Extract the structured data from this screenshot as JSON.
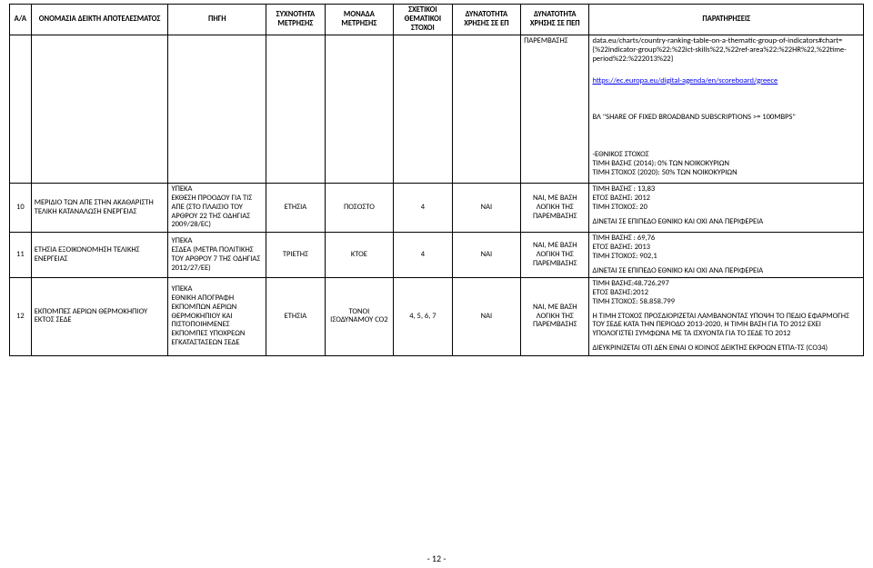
{
  "headers": {
    "aa": "Α/Α",
    "name": "ΟΝΟΜΑΣΙΑ ΔΕΙΚΤΗ ΑΠΟΤΕΛΕΣΜΑΤΟΣ",
    "source": "ΠΗΓΗ",
    "freq": "ΣΥΧΝΟΤΗΤΑ ΜΕΤΡΗΣΗΣ",
    "unit": "ΜΟΝΑΔΑ ΜΕΤΡΗΣΗΣ",
    "relevant": "ΣΧΕΤΙΚΟΙ ΘΕΜΑΤΙΚΟΙ ΣΤΟΧΟΙ",
    "ep": "ΔΥΝΑΤΟΤΗΤΑ ΧΡΗΣΗΣ ΣΕ ΕΠ",
    "pep": "ΔΥΝΑΤΟΤΗΤΑ ΧΡΗΣΗΣ ΣΕ ΠΕΠ",
    "obs": "ΠΑΡΑΤΗΡΗΣΕΙΣ"
  },
  "preRow": {
    "pep": "ΠΑΡΕΜΒΑΣΗΣ",
    "obsNote1": "data.eu/charts/country-ranking-table-on-a-thematic-group-of-indicators#chart={%22indicator-group%22:%22ict-skills%22,%22ref-area%22:%22HR%22,%22time-period%22:%222013%22}",
    "obsLink": "https://ec.europa.eu/digital-agenda/en/scoreboard/greece",
    "obsBL": "ΒΛ \"SHARE OF FIXED BROADBAND SUBSCRIPTIONS >= 100MBPS\""
  },
  "ethnikos": {
    "l1": "-ΕΘΝΙΚΟΣ ΣΤΟΧΟΣ",
    "l2": "ΤΙΜΗ ΒΑΣΗΣ (2014): 0% ΤΩΝ ΝΟΙΚΟΚΥΡΙΩΝ",
    "l3": "ΤΙΜΗ ΣΤΟΧΟΣ (2020): 50% ΤΩΝ ΝΟΙΚΟΚΥΡΙΩΝ"
  },
  "rows": [
    {
      "aa": "10",
      "name": "ΜΕΡΙΔΙΟ ΤΩΝ ΑΠΕ ΣΤΗΝ ΑΚΑΘΑΡΙΣΤΗ ΤΕΛΙΚΗ ΚΑΤΑΝΑΛΩΣΗ ΕΝΕΡΓΕΙΑΣ",
      "source": "ΥΠΕΚΑ\nΈΚΘΕΣΗ ΠΡΟΟΔΟΥ ΓΙΑ ΤΙΣ ΑΠΕ (ΣΤΟ ΠΛΑΙΣΙΟ ΤΟΥ ΑΡΘΡΟΥ 22 ΤΗΣ ΟΔΗΓΙΑΣ 2009/28/EC)",
      "freq": "ΕΤΗΣΙΑ",
      "unit": "ΠΟΣΟΣΤΟ",
      "relevant": "4",
      "ep": "ΝΑΙ",
      "pep": "ΝΑΙ, ΜΕ ΒΑΣΗ ΛΟΓΙΚΗ ΤΗΣ ΠΑΡΕΜΒΑΣΗΣ",
      "obs": "ΤΙΜΗ ΒΑΣΗΣ : 13,83\nΕΤΟΣ ΒΑΣΗΣ: 2012\nΤΙΜΗ ΣΤΟΧΟΣ: 20\n\nΔΙΝΕΤΑΙ ΣΕ ΕΠΙΠΕΔΟ ΕΘΝΙΚΟ ΚΑΙ ΟΧΙ ΑΝΑ ΠΕΡΙΦΕΡΕΙΑ"
    },
    {
      "aa": "11",
      "name": "ΕΤΗΣΙΑ ΕΞΟΙΚΟΝΟΜΗΣΗ ΤΕΛΙΚΗΣ ΕΝΕΡΓΕΙΑΣ",
      "source": "ΥΠΕΚΑ\nΕΣΔΕΑ (ΜΕΤΡΑ ΠΟΛΙΤΙΚΗΣ ΤΟΥ ΑΡΘΡΟΥ 7 ΤΗΣ ΟΔΗΓΙΑΣ 2012/27/EE)",
      "freq": "ΤΡΙΕΤΗΣ",
      "unit": "ΚΤΟΕ",
      "relevant": "4",
      "ep": "ΝΑΙ",
      "pep": "ΝΑΙ, ΜΕ ΒΑΣΗ ΛΟΓΙΚΗ ΤΗΣ ΠΑΡΕΜΒΑΣΗΣ",
      "obs": "ΤΙΜΗ ΒΑΣΗΣ : 69,76\nΕΤΟΣ ΒΑΣΗΣ: 2013\nΤΙΜΗ ΣΤΟΧΟΣ: 902,1\n\nΔΙΝΕΤΑΙ ΣΕ ΕΠΙΠΕΔΟ ΕΘΝΙΚΟ ΚΑΙ ΟΧΙ ΑΝΑ ΠΕΡΙΦΕΡΕΙΑ"
    },
    {
      "aa": "12",
      "name": "ΕΚΠΟΜΠΕΣ ΑΕΡΙΩΝ ΘΕΡΜΟΚΗΠΙΟΥ ΕΚΤΟΣ ΣΕΔΕ",
      "source": "ΥΠΕΚΑ\nΕΘΝΙΚΗ ΑΠΟΓΡΑΦΗ ΕΚΠΟΜΠΩΝ ΑΕΡΙΩΝ ΘΕΡΜΟΚΗΠΙΟΥ ΚΑΙ ΠΙΣΤΟΠΟΙΗΜΕΝΕΣ ΕΚΠΟΜΠΕΣ ΥΠΟΧΡΕΩΝ ΕΓΚΑΤΑΣΤΑΣΕΩΝ ΣΕΔΕ",
      "freq": "ΕΤΗΣΙΑ",
      "unit": "ΤΟΝΟΙ ΙΣΟΔΥΝΑΜΟΥ CO2",
      "relevant": "4, 5, 6, 7",
      "ep": "ΝΑΙ",
      "pep": "ΝΑΙ, ΜΕ ΒΑΣΗ ΛΟΓΙΚΗ ΤΗΣ ΠΑΡΕΜΒΑΣΗΣ",
      "obs": "ΤΙΜΗ ΒΑΣΗΣ:48.726.297\nΕΤΟΣ ΒΑΣΗΣ:2012\nΤΙΜΗ ΣΤΟΧΟΣ: 58.858.799\n\nΗ ΤΙΜΗ ΣΤΟΧΟΣ ΠΡΟΣΔΙΟΡΙΖΕΤΑΙ ΛΑΜΒΑΝΟΝΤΑΣ ΥΠΟΨΗ ΤΟ ΠΕΔΙΟ ΕΦΑΡΜΟΓΗΣ ΤΟΥ ΣΕΔΕ ΚΑΤΑ ΤΗΝ ΠΕΡΙΟΔΟ 2013-2020, Η ΤΙΜΗ ΒΑΣΗ ΓΙΑ ΤΟ 2012 ΕΧΕΙ ΥΠΟΛΟΓΙΣΤΕΙ ΣΥΜΦΩΝΑ ΜΕ ΤΑ ΙΣΧΥΟΝΤΑ ΓΙΑ ΤΟ ΣΕΔΕ ΤΟ 2012\n\nΔΙΕΥΚΡΙΝΙΖΕΤΑΙ ΟΤΙ ΔΕΝ ΕΙΝΑΙ Ο ΚΟΙΝΟΣ ΔΕΙΚΤΗΣ ΕΚΡΟΩΝ ΕΤΠΑ-ΤΣ (CO34)"
    }
  ],
  "pagenum": "- 12 -"
}
